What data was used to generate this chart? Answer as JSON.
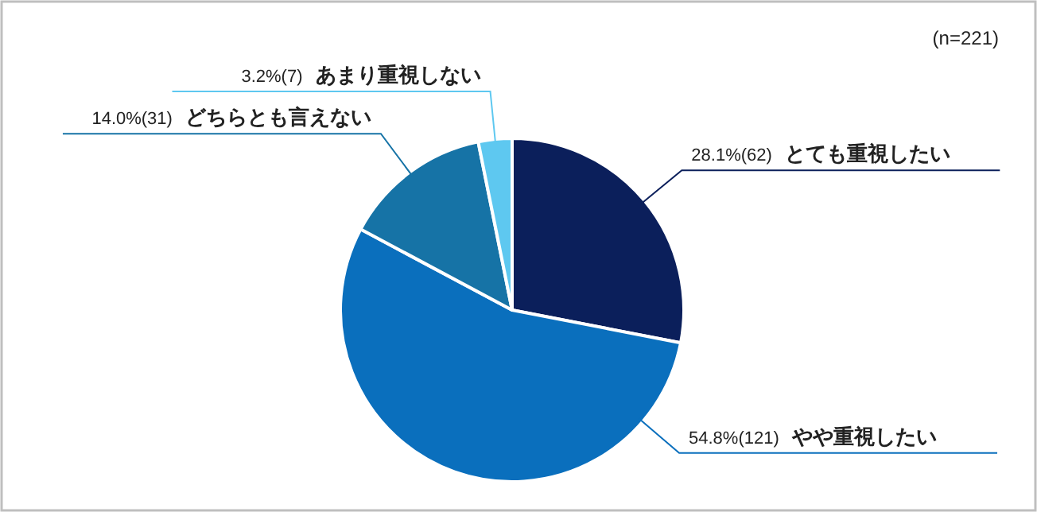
{
  "chart_data": {
    "type": "pie",
    "annotations": [
      "(n=221)"
    ],
    "categories": [
      "とても重視したい",
      "やや重視したい",
      "どちらとも言えない",
      "あまり重視しない"
    ],
    "values": [
      62,
      121,
      31,
      7
    ],
    "value_labels": [
      "28.1%(62)",
      "54.8%(121)",
      "14.0%(31)",
      "3.2%(7)"
    ],
    "colors": [
      "#0b1f5b",
      "#0a6fbd",
      "#1673a6",
      "#5ec8f0"
    ]
  }
}
